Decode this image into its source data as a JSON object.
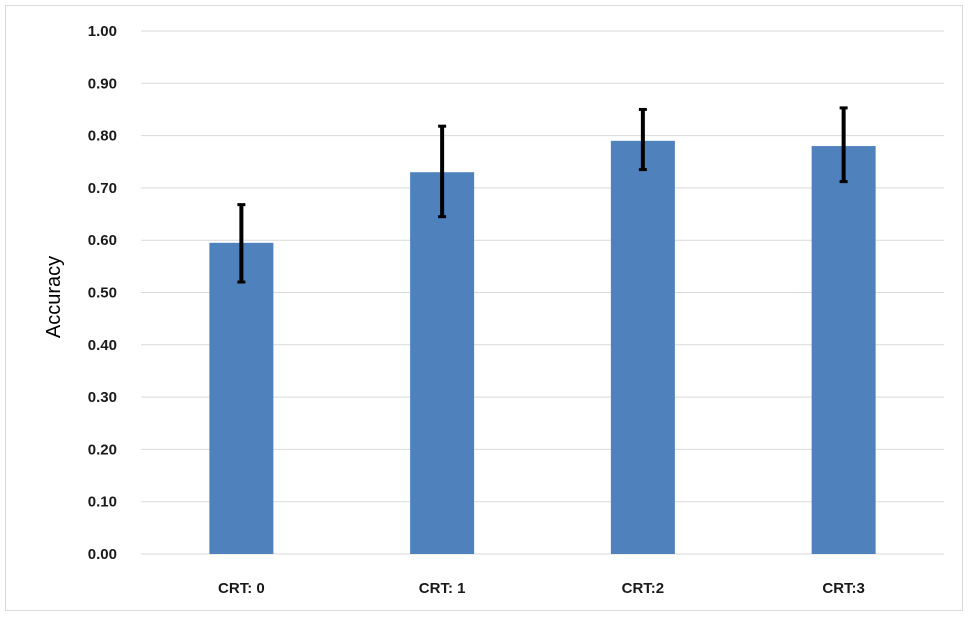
{
  "chart_data": {
    "type": "bar",
    "categories": [
      "CRT: 0",
      "CRT: 1",
      "CRT:2",
      "CRT:3"
    ],
    "values": [
      0.595,
      0.73,
      0.79,
      0.78
    ],
    "error_low": [
      0.52,
      0.645,
      0.735,
      0.712
    ],
    "error_high": [
      0.668,
      0.818,
      0.85,
      0.853
    ],
    "title": "",
    "xlabel": "",
    "ylabel": "Accuracy",
    "ylim": [
      0,
      1
    ],
    "yticks": [
      "0.00",
      "0.10",
      "0.20",
      "0.30",
      "0.40",
      "0.50",
      "0.60",
      "0.70",
      "0.80",
      "0.90",
      "1.00"
    ],
    "grid": true,
    "legend": "none",
    "bar_color": "#4f81bd",
    "error_bar_color": "#000000",
    "gridline_color": "#d9d9d9"
  }
}
